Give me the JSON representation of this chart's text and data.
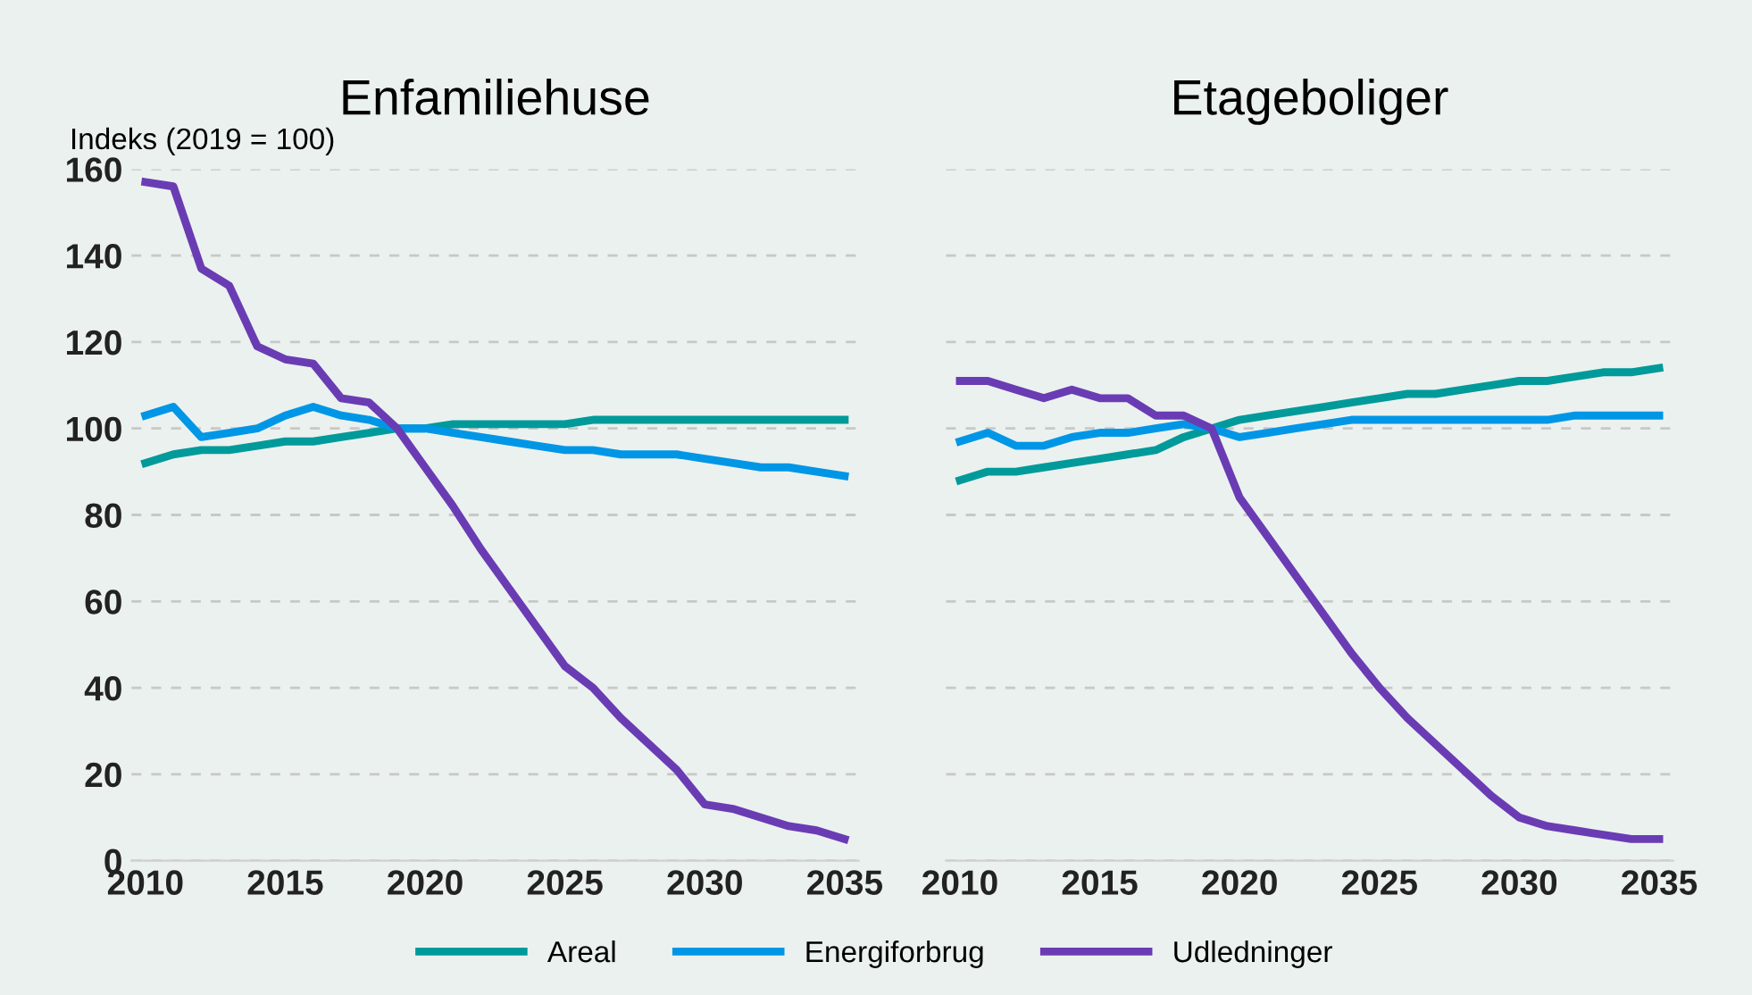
{
  "chart_data": [
    {
      "type": "line",
      "title": "Enfamiliehuse",
      "ylabel": "Indeks (2019 = 100)",
      "x": [
        2010,
        2011,
        2012,
        2013,
        2014,
        2015,
        2016,
        2017,
        2018,
        2019,
        2020,
        2021,
        2022,
        2023,
        2024,
        2025,
        2026,
        2027,
        2028,
        2029,
        2030,
        2031,
        2032,
        2033,
        2034,
        2035
      ],
      "xlim": [
        2009.5,
        2035.5
      ],
      "xticks": [
        2010,
        2015,
        2020,
        2025,
        2030,
        2035
      ],
      "ylim": [
        0,
        160
      ],
      "yticks": [
        0,
        20,
        40,
        60,
        80,
        100,
        120,
        140,
        160
      ],
      "grid": "y",
      "legend": "bottom",
      "line_style": "solid",
      "marker": "none",
      "series": [
        {
          "name": "Areal",
          "color": "#009a9a",
          "values": [
            92,
            94,
            95,
            95,
            96,
            97,
            97,
            98,
            99,
            100,
            100,
            101,
            101,
            101,
            101,
            101,
            102,
            102,
            102,
            102,
            102,
            102,
            102,
            102,
            102,
            102
          ]
        },
        {
          "name": "Energiforbrug",
          "color": "#0096e6",
          "values": [
            103,
            105,
            98,
            99,
            100,
            103,
            105,
            103,
            102,
            100,
            100,
            99,
            98,
            97,
            96,
            95,
            95,
            94,
            94,
            94,
            93,
            92,
            91,
            91,
            90,
            89
          ]
        },
        {
          "name": "Udledninger",
          "color": "#6a3cb4",
          "values": [
            157,
            156,
            137,
            133,
            119,
            116,
            115,
            107,
            106,
            100,
            91,
            82,
            72,
            63,
            54,
            45,
            40,
            33,
            27,
            21,
            13,
            12,
            10,
            8,
            7,
            5
          ]
        }
      ]
    },
    {
      "type": "line",
      "title": "Etageboliger",
      "x": [
        2010,
        2011,
        2012,
        2013,
        2014,
        2015,
        2016,
        2017,
        2018,
        2019,
        2020,
        2021,
        2022,
        2023,
        2024,
        2025,
        2026,
        2027,
        2028,
        2029,
        2030,
        2031,
        2032,
        2033,
        2034,
        2035
      ],
      "xlim": [
        2009.5,
        2035.5
      ],
      "xticks": [
        2010,
        2015,
        2020,
        2025,
        2030,
        2035
      ],
      "ylim": [
        0,
        160
      ],
      "yticks": [
        0,
        20,
        40,
        60,
        80,
        100,
        120,
        140,
        160
      ],
      "grid": "y",
      "tick_labels": "x",
      "line_style": "solid",
      "marker": "none",
      "series": [
        {
          "color": "#009a9a",
          "values": [
            88,
            90,
            90,
            91,
            92,
            93,
            94,
            95,
            98,
            100,
            102,
            103,
            104,
            105,
            106,
            107,
            108,
            108,
            109,
            110,
            111,
            111,
            112,
            113,
            113,
            114
          ]
        },
        {
          "color": "#0096e6",
          "values": [
            97,
            99,
            96,
            96,
            98,
            99,
            99,
            100,
            101,
            100,
            98,
            99,
            100,
            101,
            102,
            102,
            102,
            102,
            102,
            102,
            102,
            102,
            103,
            103,
            103,
            103
          ]
        },
        {
          "color": "#6a3cb4",
          "values": [
            111,
            111,
            109,
            107,
            109,
            107,
            107,
            103,
            103,
            100,
            84,
            75,
            66,
            57,
            48,
            40,
            33,
            27,
            21,
            15,
            10,
            8,
            7,
            6,
            5,
            5
          ]
        }
      ]
    }
  ]
}
